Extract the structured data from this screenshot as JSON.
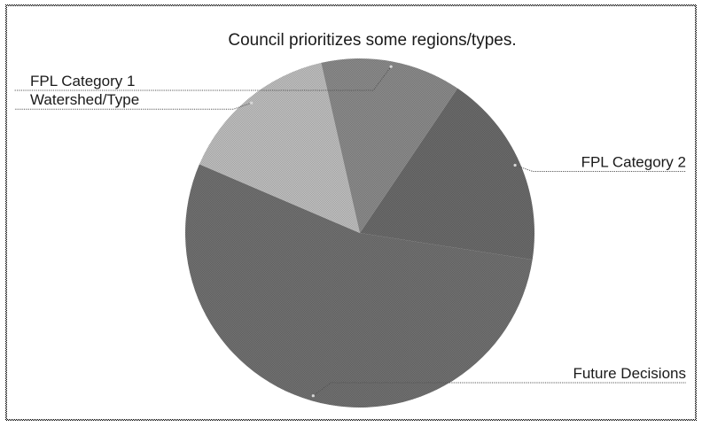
{
  "chart_data": {
    "type": "pie",
    "title": "Council prioritizes some regions/types.",
    "slices": [
      {
        "label": "FPL Category 2",
        "value": 18,
        "color": "#6e6e6e",
        "anchor": "right"
      },
      {
        "label": "Future Decisions",
        "value": 54,
        "color": "#747474",
        "anchor": "right"
      },
      {
        "label": "Watershed/Type",
        "value": 15,
        "color": "#c4c4c4",
        "anchor": "left"
      },
      {
        "label": "FPL Category 1",
        "value": 13,
        "color": "#8f8f8f",
        "anchor": "left"
      }
    ],
    "start_angle_deg": 34,
    "direction": "clockwise",
    "legend": "none",
    "label_style": "leader-lines"
  },
  "colors": {
    "frame_border": "#2c2c2c",
    "background": "#ffffff",
    "leader_line": "#555555",
    "text": "#1a1a1a"
  }
}
